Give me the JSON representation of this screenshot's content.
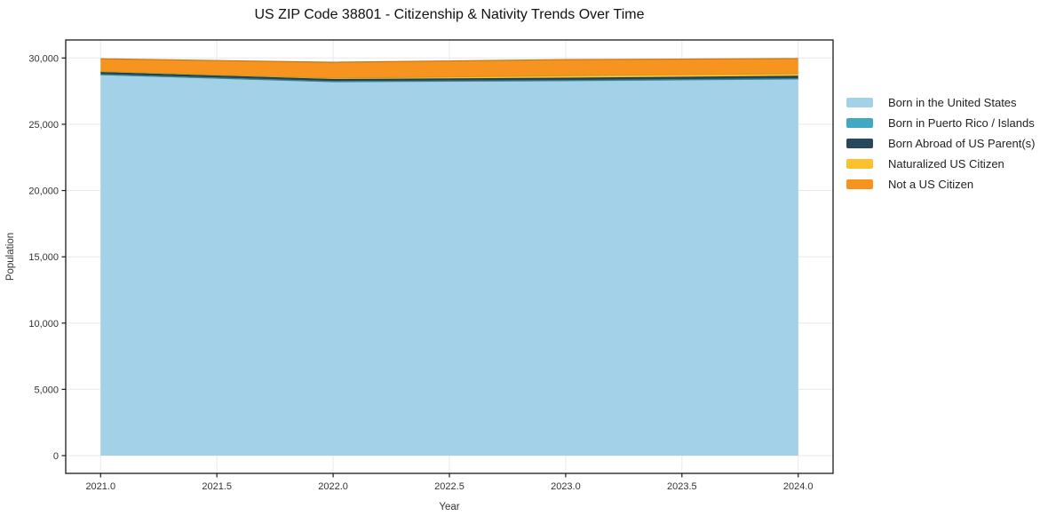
{
  "chart_data": {
    "type": "area",
    "stacked": true,
    "title": "US ZIP Code 38801 - Citizenship & Nativity Trends Over Time",
    "xlabel": "Year",
    "ylabel": "Population",
    "x": [
      2021,
      2022,
      2023,
      2024
    ],
    "series": [
      {
        "name": "Born in the United States",
        "color": "#a3d1e8",
        "values": [
          28740,
          28210,
          28280,
          28410
        ]
      },
      {
        "name": "Born in Puerto Rico / Islands",
        "color": "#41a8c2",
        "values": [
          10,
          10,
          20,
          20
        ]
      },
      {
        "name": "Born Abroad of US Parent(s)",
        "color": "#28495c",
        "values": [
          160,
          150,
          170,
          190
        ]
      },
      {
        "name": "Naturalized US Citizen",
        "color": "#fdc130",
        "values": [
          70,
          100,
          200,
          200
        ]
      },
      {
        "name": "Not a US Citizen",
        "color": "#f7941f",
        "values": [
          960,
          1210,
          1210,
          1130
        ]
      }
    ],
    "xlim": [
      2020.85,
      2024.15
    ],
    "ylim": [
      -1340,
      31360
    ],
    "x_ticks": {
      "values": [
        2021.0,
        2021.5,
        2022.0,
        2022.5,
        2023.0,
        2023.5,
        2024.0
      ],
      "labels": [
        "2021.0",
        "2021.5",
        "2022.0",
        "2022.5",
        "2023.0",
        "2023.5",
        "2024.0"
      ]
    },
    "y_ticks": {
      "values": [
        0,
        5000,
        10000,
        15000,
        20000,
        25000,
        30000
      ],
      "labels": [
        "0",
        "5,000",
        "10,000",
        "15,000",
        "20,000",
        "25,000",
        "30,000"
      ]
    },
    "grid": true,
    "legend_position": "right"
  },
  "colors": {
    "background": "#ffffff",
    "grid": "#e8e8e8",
    "spine": "#1a1a1a",
    "tick_text": "#333333",
    "title_text": "#111111"
  }
}
